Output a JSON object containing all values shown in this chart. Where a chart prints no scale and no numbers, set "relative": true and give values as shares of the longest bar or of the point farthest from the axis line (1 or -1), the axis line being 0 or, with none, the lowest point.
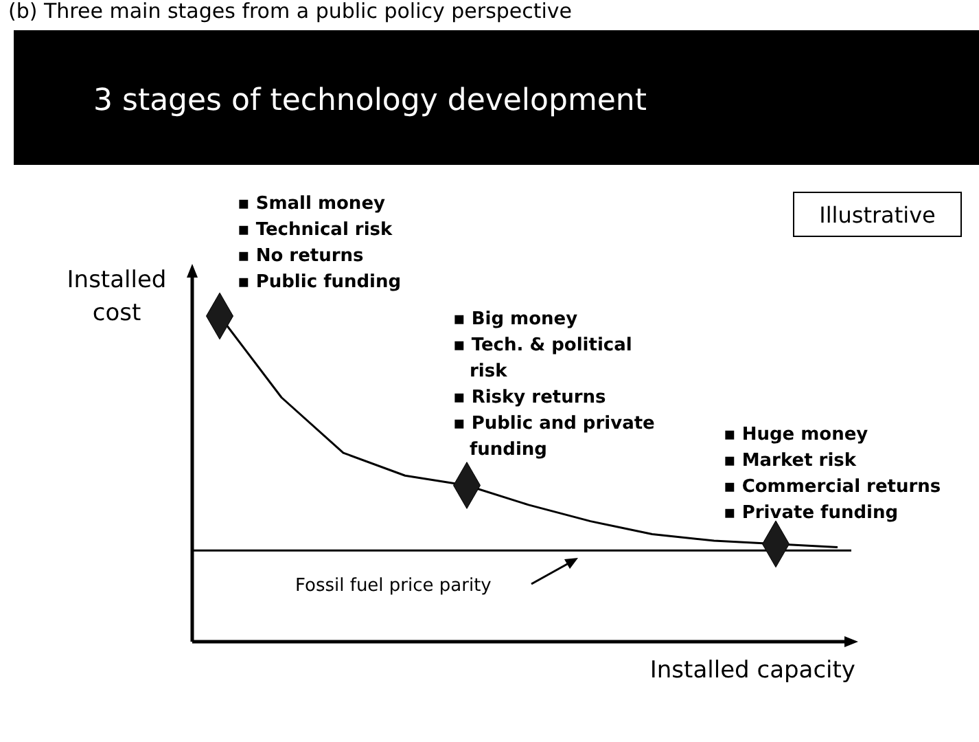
{
  "chart_data": {
    "type": "line",
    "title": "3 stages of technology development",
    "subtitle": "(b) Three main stages from a public policy perspective",
    "xlabel": "Installed capacity",
    "ylabel": "Installed\ncost",
    "relative": true,
    "categories": [
      null,
      null,
      null,
      null,
      null,
      null,
      null,
      null,
      null,
      null,
      null
    ],
    "series": [
      {
        "color": "#000000",
        "values": [
          1,
          0.75,
          0.58,
          0.51,
          0.48,
          0.42,
          0.37,
          0.33,
          0.31,
          0.3,
          0.29
        ]
      }
    ],
    "ref_lines": [
      {
        "axis": "y",
        "value": 0.28,
        "label": "Fossil fuel price parity",
        "color": "#000000"
      }
    ],
    "annotations": [
      "▪ Small money\n▪ Technical risk\n▪ No returns\n▪ Public funding",
      "▪ Big money\n▪ Tech. & political\nrisk\n▪ Risky returns\n▪ Public and private\nfunding",
      "▪ Huge money\n▪ Market risk\n▪ Commercial returns\n▪ Private funding",
      "Illustrative"
    ]
  }
}
